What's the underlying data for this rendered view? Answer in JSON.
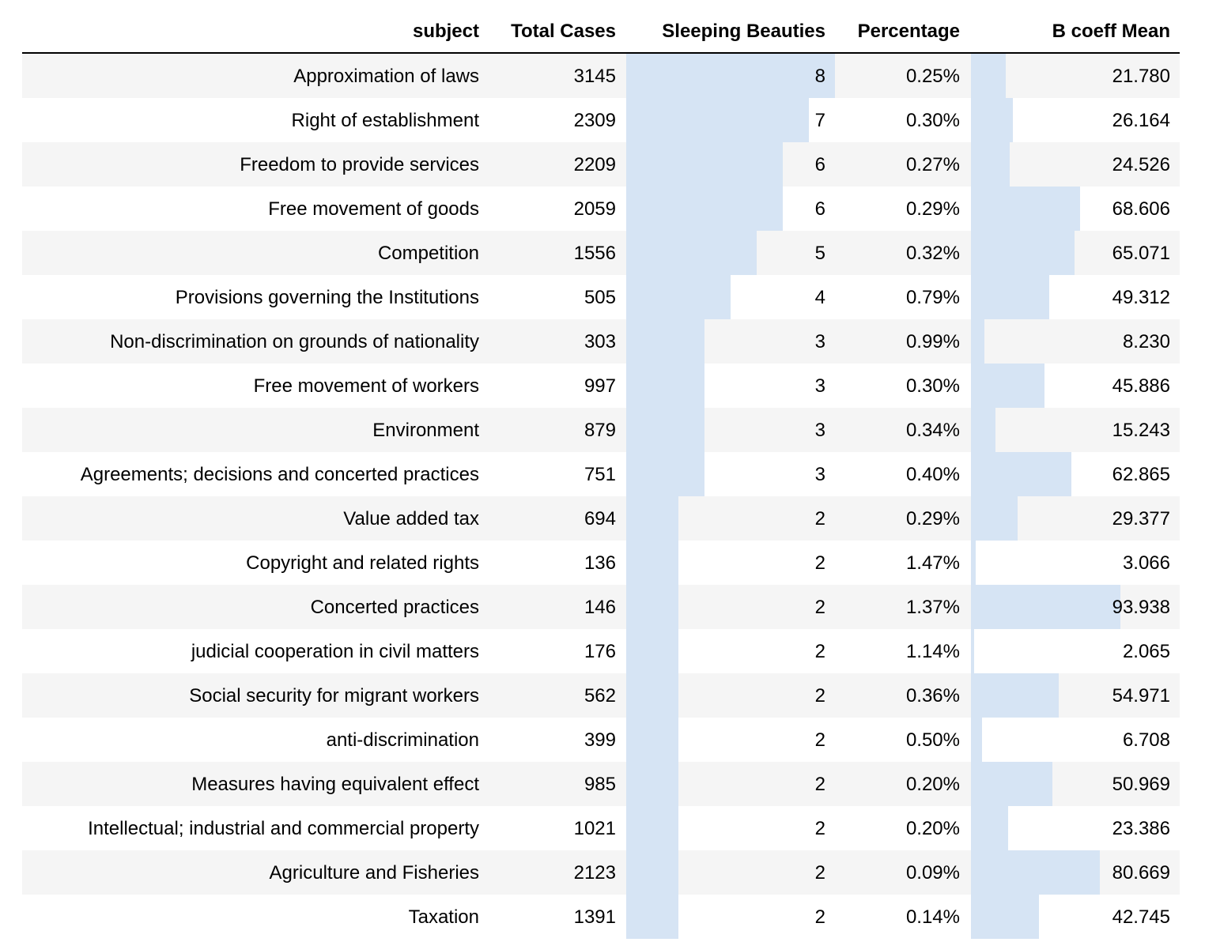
{
  "columns": [
    "subject",
    "Total Cases",
    "Sleeping Beauties",
    "Percentage",
    "B coeff Mean"
  ],
  "bar_color": "#d6e4f4",
  "stripe_color": "#f5f5f5",
  "rows": [
    {
      "subject": "Approximation of laws",
      "total": "3145",
      "sb": "8",
      "pct": "0.25%",
      "b": "21.780"
    },
    {
      "subject": "Right of establishment",
      "total": "2309",
      "sb": "7",
      "pct": "0.30%",
      "b": "26.164"
    },
    {
      "subject": "Freedom to provide services",
      "total": "2209",
      "sb": "6",
      "pct": "0.27%",
      "b": "24.526"
    },
    {
      "subject": "Free movement of goods",
      "total": "2059",
      "sb": "6",
      "pct": "0.29%",
      "b": "68.606"
    },
    {
      "subject": "Competition",
      "total": "1556",
      "sb": "5",
      "pct": "0.32%",
      "b": "65.071"
    },
    {
      "subject": "Provisions governing the Institutions",
      "total": "505",
      "sb": "4",
      "pct": "0.79%",
      "b": "49.312"
    },
    {
      "subject": "Non-discrimination on grounds of nationality",
      "total": "303",
      "sb": "3",
      "pct": "0.99%",
      "b": "8.230"
    },
    {
      "subject": "Free movement of workers",
      "total": "997",
      "sb": "3",
      "pct": "0.30%",
      "b": "45.886"
    },
    {
      "subject": "Environment",
      "total": "879",
      "sb": "3",
      "pct": "0.34%",
      "b": "15.243"
    },
    {
      "subject": "Agreements; decisions and concerted practices",
      "total": "751",
      "sb": "3",
      "pct": "0.40%",
      "b": "62.865"
    },
    {
      "subject": "Value added tax",
      "total": "694",
      "sb": "2",
      "pct": "0.29%",
      "b": "29.377"
    },
    {
      "subject": "Copyright and related rights",
      "total": "136",
      "sb": "2",
      "pct": "1.47%",
      "b": "3.066"
    },
    {
      "subject": "Concerted practices",
      "total": "146",
      "sb": "2",
      "pct": "1.37%",
      "b": "93.938"
    },
    {
      "subject": "judicial cooperation in civil matters",
      "total": "176",
      "sb": "2",
      "pct": "1.14%",
      "b": "2.065"
    },
    {
      "subject": "Social security for migrant workers",
      "total": "562",
      "sb": "2",
      "pct": "0.36%",
      "b": "54.971"
    },
    {
      "subject": "anti-discrimination",
      "total": "399",
      "sb": "2",
      "pct": "0.50%",
      "b": "6.708"
    },
    {
      "subject": "Measures having equivalent effect",
      "total": "985",
      "sb": "2",
      "pct": "0.20%",
      "b": "50.969"
    },
    {
      "subject": "Intellectual; industrial and commercial property",
      "total": "1021",
      "sb": "2",
      "pct": "0.20%",
      "b": "23.386"
    },
    {
      "subject": "Agriculture and Fisheries",
      "total": "2123",
      "sb": "2",
      "pct": "0.09%",
      "b": "80.669"
    },
    {
      "subject": "Taxation",
      "total": "1391",
      "sb": "2",
      "pct": "0.14%",
      "b": "42.745"
    }
  ]
}
